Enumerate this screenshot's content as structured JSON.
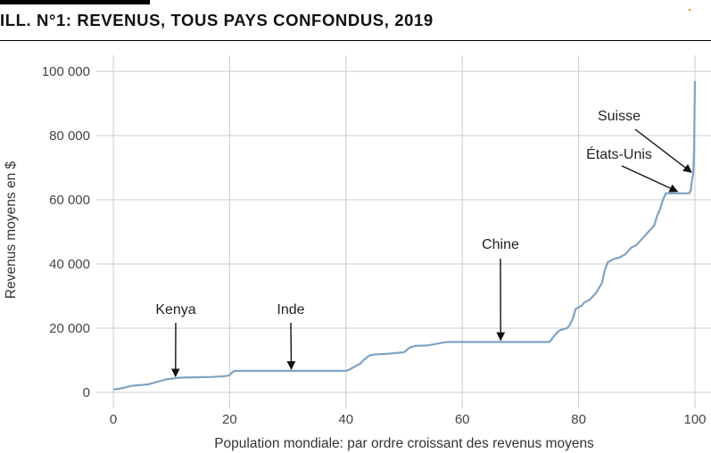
{
  "header": {
    "title": "ILL. N°1: REVENUS, TOUS PAYS CONFONDUS, 2019"
  },
  "colors": {
    "line": "#7fa2c2",
    "grid": "#cccccc",
    "axis_text": "#444444"
  },
  "chart_data": {
    "type": "line",
    "title": "ILL. N°1: REVENUS, TOUS PAYS CONFONDUS, 2019",
    "xlabel": "Population mondiale: par ordre croissant des revenus moyens",
    "ylabel": "Revenus moyens en $",
    "xlim": [
      0,
      100
    ],
    "ylim": [
      0,
      100000
    ],
    "x_ticks": [
      0,
      20,
      40,
      60,
      80,
      100
    ],
    "x_tick_labels": [
      "0",
      "20",
      "40",
      "60",
      "80",
      "100"
    ],
    "y_ticks": [
      0,
      20000,
      40000,
      60000,
      80000,
      100000
    ],
    "y_tick_labels": [
      "0",
      "20 000",
      "40 000",
      "60 000",
      "80 000",
      "100 000"
    ],
    "grid": true,
    "legend": false,
    "series": [
      {
        "x": [
          0,
          1,
          2,
          3,
          4,
          5,
          6,
          7,
          8,
          9,
          10.5,
          11,
          12,
          14,
          17,
          19,
          20,
          20.5,
          21,
          25,
          30,
          35,
          40,
          40.5,
          41,
          42,
          42.5,
          43,
          44,
          45,
          46,
          47,
          50,
          51,
          52,
          54,
          57,
          58,
          60,
          65,
          70,
          75,
          76,
          76.5,
          77,
          78,
          78.5,
          79,
          79.5,
          80,
          80.5,
          81,
          82,
          83,
          84,
          84.5,
          85,
          85.5,
          86,
          87,
          88,
          89,
          90,
          91,
          92,
          93,
          93.5,
          94,
          94.5,
          95,
          95.5,
          96,
          97,
          98,
          99,
          99.3,
          99.5,
          99.7,
          99.85,
          100
        ],
        "y": [
          900,
          1100,
          1500,
          2000,
          2200,
          2300,
          2500,
          3000,
          3500,
          4000,
          4400,
          4500,
          4600,
          4700,
          4800,
          5000,
          5300,
          6400,
          6700,
          6700,
          6700,
          6700,
          6700,
          7000,
          7500,
          8500,
          9000,
          10000,
          11500,
          11800,
          11900,
          12000,
          12500,
          14000,
          14500,
          14600,
          15600,
          15700,
          15700,
          15700,
          15700,
          15700,
          18000,
          19000,
          19500,
          20000,
          21000,
          23000,
          26000,
          26500,
          27000,
          28000,
          29000,
          31000,
          34000,
          38000,
          40500,
          41000,
          41500,
          42000,
          43000,
          45000,
          46000,
          48000,
          50000,
          52000,
          55000,
          57000,
          60000,
          62000,
          62000,
          62000,
          62000,
          62000,
          62000,
          63000,
          66000,
          68000,
          75000,
          97000
        ]
      }
    ],
    "annotations": [
      {
        "label": "Kenya",
        "x": 10.7,
        "y": 4400
      },
      {
        "label": "Inde",
        "x": 30.6,
        "y": 6700
      },
      {
        "label": "Chine",
        "x": 66.6,
        "y": 15700
      },
      {
        "label": "États-Unis",
        "x": 97.0,
        "y": 62000
      },
      {
        "label": "Suisse",
        "x": 99.4,
        "y": 68000
      }
    ]
  }
}
